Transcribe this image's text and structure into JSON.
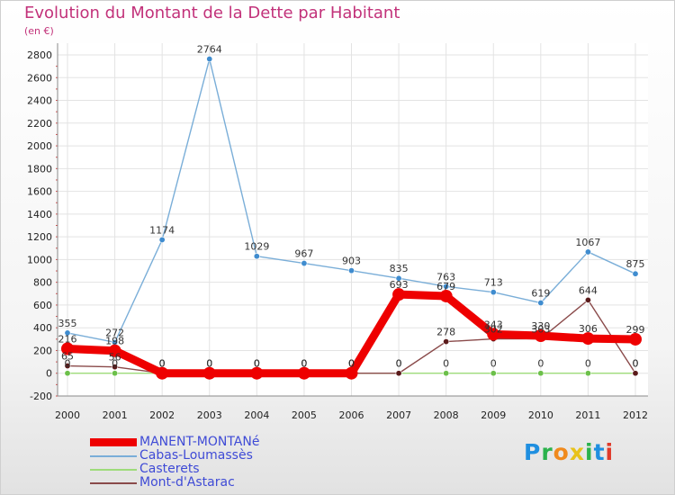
{
  "chart_data": {
    "type": "line",
    "title": "Evolution du Montant de la Dette par Habitant",
    "subtitle": "(en €)",
    "xlabel": "",
    "ylabel": "",
    "ylim": [
      -200,
      2800
    ],
    "y_ticks": [
      -200,
      0,
      200,
      400,
      600,
      800,
      1000,
      1200,
      1400,
      1600,
      1800,
      2000,
      2200,
      2400,
      2600,
      2800
    ],
    "x": [
      "2000",
      "2001",
      "2002",
      "2003",
      "2004",
      "2005",
      "2006",
      "2007",
      "2008",
      "2009",
      "2010",
      "2011",
      "2012"
    ],
    "grid": true,
    "legend_position": "bottom-left",
    "series": [
      {
        "name": "MANENT-MONTANé",
        "color": "#ee0000",
        "marker": "#ee0000",
        "values": [
          216,
          198,
          0,
          0,
          0,
          0,
          0,
          693,
          679,
          343,
          330,
          306,
          299
        ],
        "labels": [
          "216",
          "198",
          "0",
          "0",
          "0",
          "0",
          "0",
          "693",
          "679",
          "343",
          "330",
          "306",
          "299"
        ]
      },
      {
        "name": "Cabas-Loumassès",
        "color": "#7aaed8",
        "marker": "#3f8ccf",
        "values": [
          355,
          272,
          1174,
          2764,
          1029,
          967,
          903,
          835,
          763,
          713,
          619,
          1067,
          875
        ],
        "labels": [
          "355",
          "272",
          "1174",
          "2764",
          "1029",
          "967",
          "903",
          "835",
          "763",
          "713",
          "619",
          "1067",
          "875"
        ]
      },
      {
        "name": "Casterets",
        "color": "#9edc7a",
        "marker": "#6cc04a",
        "values": [
          0,
          0,
          0,
          0,
          0,
          0,
          0,
          0,
          0,
          0,
          0,
          0,
          0
        ],
        "labels": [
          "0",
          "0",
          "0",
          "0",
          "0",
          "0",
          "0",
          "0",
          "0",
          "0",
          "0",
          "0",
          "0"
        ]
      },
      {
        "name": "Mont-d'Astarac",
        "color": "#8a4a4a",
        "marker": "#5a1a1a",
        "values": [
          65,
          56,
          0,
          0,
          0,
          0,
          0,
          0,
          278,
          302,
          303,
          644,
          0
        ],
        "labels": [
          "65",
          "56",
          "0",
          "0",
          "0",
          "0",
          "0",
          "0",
          "278",
          "302",
          "303",
          "644",
          "0"
        ]
      }
    ]
  },
  "logo_text": "Proxiti"
}
